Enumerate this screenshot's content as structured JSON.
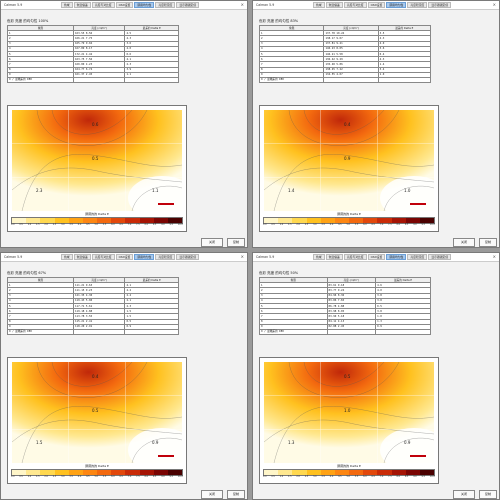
{
  "app_title": "Calman 5.9",
  "tabs": [
    "色域",
    "色温偏差",
    "亮度与对比度",
    "OSD设置",
    "屏幕均匀性",
    "亮度稳定度",
    "显示器锁定值"
  ],
  "active_tab": "屏幕均匀性",
  "buttons": {
    "close": "关闭",
    "copy": "复制"
  },
  "legend_caption": "屏幕的的 Delta E",
  "scale_ticks": [
    "0.0",
    "0.5",
    "1.0",
    "1.5",
    "2.0",
    "2.5",
    "3.0",
    "3.5",
    "4.0",
    "4.5",
    "5.0",
    "5.5",
    "6.0",
    "6.5",
    "7.0",
    "7.5",
    "8.0",
    "8.5",
    "9.0",
    "9.5",
    "10.0"
  ],
  "colors": {
    "scale": [
      "#fff6c9",
      "#ffe890",
      "#ffd84f",
      "#ffc11f",
      "#ffa214",
      "#fd8612",
      "#f3690f",
      "#e2480c",
      "#c92b08",
      "#a51405",
      "#7a0503",
      "#4a0101"
    ]
  },
  "columns": {
    "zone": "象限",
    "lum": "亮度 (cd/m²)",
    "de": "最差的 Delta E"
  },
  "panels": [
    {
      "id": "p100",
      "heading": "色彩 亮度 的均匀性 100%",
      "rows": [
        {
          "z": "1",
          "l": "163.55",
          "p": "8.56",
          "d": "4.5"
        },
        {
          "z": "2",
          "l": "166.21",
          "p": "7.75",
          "d": "4.3"
        },
        {
          "z": "3",
          "l": "165.79",
          "p": "9.04",
          "d": "3.6"
        },
        {
          "z": "4",
          "l": "167.89",
          "p": "8.17",
          "d": "4.0"
        },
        {
          "z": "5",
          "l": "172.21",
          "p": "4.42",
          "d": "0.6"
        },
        {
          "z": "6",
          "l": "163.75",
          "p": "7.56",
          "d": "4.1"
        },
        {
          "z": "7",
          "l": "160.80",
          "p": "4.23",
          "d": "2.3"
        },
        {
          "z": "8",
          "l": "164.77",
          "p": "6.74",
          "d": "3.9"
        },
        {
          "z": "9",
          "l": "161.37",
          "p": "2.45",
          "d": "1.1"
        },
        {
          "z": "9 / 最糟差的 DE0",
          "l": "",
          "p": "",
          "d": ""
        }
      ],
      "marks": [
        "0.6",
        "0.5",
        "2.3",
        "1.1"
      ]
    },
    {
      "id": "p83",
      "heading": "色彩 亮度 的均匀性 83%",
      "rows": [
        {
          "z": "1",
          "l": "137.78",
          "p": "10.24",
          "d": "3.5"
        },
        {
          "z": "2",
          "l": "138.17",
          "p": "9.07",
          "d": "4.3"
        },
        {
          "z": "3",
          "l": "137.81",
          "p": "9.41",
          "d": "4.0"
        },
        {
          "z": "4",
          "l": "140.23",
          "p": "8.05",
          "d": "3.6"
        },
        {
          "z": "5",
          "l": "146.21",
          "p": "5.58",
          "d": "0.4"
        },
        {
          "z": "6",
          "l": "136.42",
          "p": "9.29",
          "d": "4.3"
        },
        {
          "z": "7",
          "l": "135.48",
          "p": "5.86",
          "d": "1.4"
        },
        {
          "z": "8",
          "l": "138.45",
          "p": "7.22",
          "d": "3.4"
        },
        {
          "z": "9",
          "l": "134.55",
          "p": "4.07",
          "d": "1.0"
        },
        {
          "z": "9 / 最糟差的 DE0",
          "l": "",
          "p": "",
          "d": ""
        }
      ],
      "marks": [
        "0.4",
        "0.9",
        "1.4",
        "1.0"
      ]
    },
    {
      "id": "p67",
      "heading": "色彩 亮度 的均匀性 67%",
      "rows": [
        {
          "z": "1",
          "l": "111.21",
          "p": "9.63",
          "d": "4.1"
        },
        {
          "z": "2",
          "l": "111.15",
          "p": "9.23",
          "d": "4.2"
        },
        {
          "z": "3",
          "l": "121.35",
          "p": "4.30",
          "d": "2.4"
        },
        {
          "z": "4",
          "l": "119.43",
          "p": "5.00",
          "d": "2.1"
        },
        {
          "z": "5",
          "l": "117.71",
          "p": "5.61",
          "d": "2.3"
        },
        {
          "z": "6",
          "l": "119.18",
          "p": "4.88",
          "d": "1.5"
        },
        {
          "z": "7",
          "l": "113.78",
          "p": "3.55",
          "d": "1.5"
        },
        {
          "z": "8",
          "l": "115.21",
          "p": "2.41",
          "d": "0.5"
        },
        {
          "z": "9",
          "l": "118.20",
          "p": "2.91",
          "d": "0.9"
        },
        {
          "z": "9 / 最糟差的 DE0",
          "l": "",
          "p": "",
          "d": ""
        }
      ],
      "marks": [
        "0.4",
        "0.5",
        "1.5",
        "0.9"
      ]
    },
    {
      "id": "p50",
      "heading": "色彩 亮度 的均匀性 50%",
      "rows": [
        {
          "z": "1",
          "l": "83.61",
          "p": "9.18",
          "d": "4.6"
        },
        {
          "z": "2",
          "l": "83.77",
          "p": "9.24",
          "d": "4.0"
        },
        {
          "z": "3",
          "l": "84.96",
          "p": "8.36",
          "d": "3.8"
        },
        {
          "z": "4",
          "l": "83.86",
          "p": "7.65",
          "d": "3.8"
        },
        {
          "z": "5",
          "l": "86.78",
          "p": "4.88",
          "d": "0.5"
        },
        {
          "z": "6",
          "l": "83.98",
          "p": "8.05",
          "d": "3.8"
        },
        {
          "z": "7",
          "l": "83.90",
          "p": "5.18",
          "d": "1.0"
        },
        {
          "z": "8",
          "l": "84.11",
          "p": "4.13",
          "d": "1.3"
        },
        {
          "z": "9",
          "l": "82.88",
          "p": "2.45",
          "d": "0.9"
        },
        {
          "z": "9 / 最糟差的 DE0",
          "l": "",
          "p": "",
          "d": ""
        }
      ],
      "marks": [
        "0.5",
        "1.0",
        "1.3",
        "0.9"
      ]
    }
  ]
}
